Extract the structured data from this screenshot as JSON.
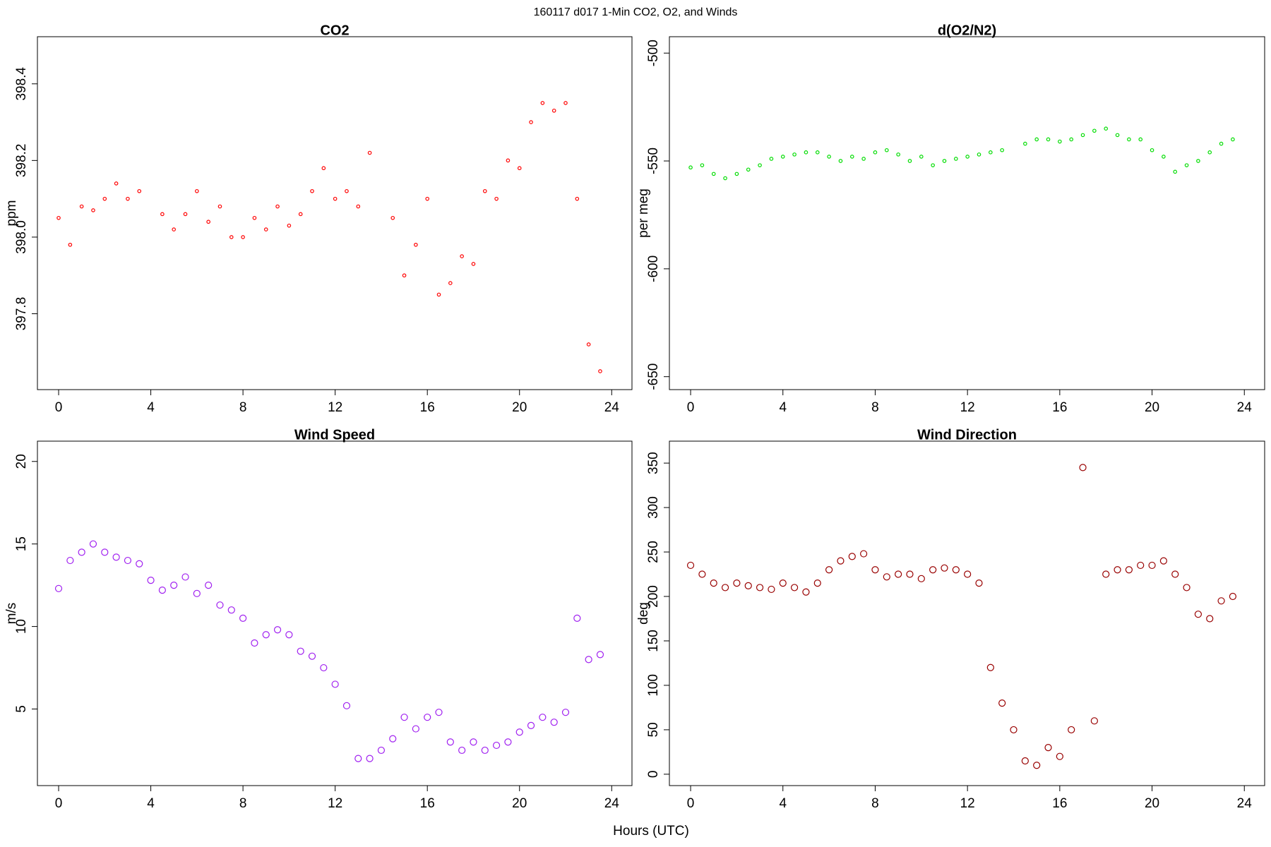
{
  "title": "160117   d017   1-Min CO2, O2, and Winds",
  "x_label": "Hours (UTC)",
  "chart_data": [
    {
      "type": "scatter",
      "title": "CO2",
      "y_label": "ppm",
      "color": "#ff0000",
      "x": [
        0,
        0.5,
        1,
        1.5,
        2,
        2.5,
        3,
        3.5,
        4,
        4.5,
        5,
        5.5,
        6,
        6.5,
        7,
        7.5,
        8,
        8.5,
        9,
        9.5,
        10,
        10.5,
        11,
        11.5,
        12,
        12.5,
        13,
        13.5,
        14,
        14.5,
        15,
        15.5,
        16,
        16.5,
        17,
        17.5,
        18,
        18.5,
        19,
        19.5,
        20,
        20.5,
        21,
        21.5,
        22,
        22.5,
        23,
        23.5
      ],
      "values": [
        398.05,
        397.98,
        398.08,
        398.07,
        398.1,
        398.14,
        398.1,
        398.12,
        null,
        398.06,
        398.02,
        398.06,
        398.12,
        398.04,
        398.08,
        398.0,
        398.0,
        398.05,
        398.02,
        398.08,
        398.03,
        398.06,
        398.12,
        398.18,
        398.1,
        398.12,
        398.08,
        398.22,
        null,
        398.05,
        397.9,
        397.98,
        398.1,
        397.85,
        397.88,
        397.95,
        397.93,
        398.12,
        398.1,
        398.2,
        398.18,
        398.3,
        398.35,
        398.33,
        398.35,
        398.1,
        397.72,
        397.65
      ],
      "xlim": [
        -0.92,
        24.88
      ],
      "ylim": [
        397.602,
        398.523
      ],
      "xticks": [
        0,
        4,
        8,
        12,
        16,
        20,
        24
      ],
      "yticks": [
        397.8,
        {
          "value": 398,
          "label": "398.0"
        },
        398.2,
        398.4
      ]
    },
    {
      "type": "scatter",
      "title": "d(O2/N2)",
      "y_label": "per meg",
      "color": "#00dd00",
      "x": [
        0,
        0.5,
        1,
        1.5,
        2,
        2.5,
        3,
        3.5,
        4,
        4.5,
        5,
        5.5,
        6,
        6.5,
        7,
        7.5,
        8,
        8.5,
        9,
        9.5,
        10,
        10.5,
        11,
        11.5,
        12,
        12.5,
        13,
        13.5,
        14,
        14.5,
        15,
        15.5,
        16,
        16.5,
        17,
        17.5,
        18,
        18.5,
        19,
        19.5,
        20,
        20.5,
        21,
        21.5,
        22,
        22.5,
        23,
        23.5
      ],
      "values": [
        -553,
        -552,
        -556,
        -558,
        -556,
        -554,
        -552,
        -549,
        -548,
        -547,
        -546,
        -546,
        -548,
        -550,
        -548,
        -549,
        -546,
        -545,
        -547,
        -550,
        -548,
        -552,
        -550,
        -549,
        -548,
        -547,
        -546,
        -545,
        null,
        -542,
        -540,
        -540,
        -541,
        -540,
        -538,
        -536,
        -535,
        -538,
        -540,
        -540,
        -545,
        -548,
        -555,
        -552,
        -550,
        -546,
        -542,
        -540
      ],
      "xlim": [
        -0.92,
        24.88
      ],
      "ylim": [
        -656.0,
        -492.4
      ],
      "xticks": [
        0,
        4,
        8,
        12,
        16,
        20,
        24
      ],
      "yticks": [
        -650,
        -600,
        -550,
        -500
      ]
    },
    {
      "type": "scatter",
      "title": "Wind Speed",
      "y_label": "m/s",
      "color": "#a020f0",
      "x": [
        0,
        0.5,
        1,
        1.5,
        2,
        2.5,
        3,
        3.5,
        4,
        4.5,
        5,
        5.5,
        6,
        6.5,
        7,
        7.5,
        8,
        8.5,
        9,
        9.5,
        10,
        10.5,
        11,
        11.5,
        12,
        12.5,
        13,
        13.5,
        14,
        14.5,
        15,
        15.5,
        16,
        16.5,
        17,
        17.5,
        18,
        18.5,
        19,
        19.5,
        20,
        20.5,
        21,
        21.5,
        22,
        22.5,
        23,
        23.5
      ],
      "values": [
        12.3,
        14,
        14.5,
        15,
        14.5,
        14.2,
        14,
        13.8,
        12.8,
        12.2,
        12.5,
        13,
        12,
        12.5,
        11.3,
        11,
        10.5,
        9,
        9.5,
        9.8,
        9.5,
        8.5,
        8.2,
        7.5,
        6.5,
        5.2,
        2,
        2,
        2.5,
        3.2,
        4.5,
        3.8,
        4.5,
        4.8,
        3,
        2.5,
        3,
        2.5,
        2.8,
        3,
        3.6,
        4,
        4.5,
        4.2,
        4.8,
        10.5,
        8,
        8.3
      ],
      "xlim": [
        -0.92,
        24.88
      ],
      "ylim": [
        0.36,
        21.23
      ],
      "xticks": [
        0,
        4,
        8,
        12,
        16,
        20,
        24
      ],
      "yticks": [
        5,
        10,
        15,
        20
      ]
    },
    {
      "type": "scatter",
      "title": "Wind Direction",
      "y_label": "deg",
      "color": "#990000",
      "x": [
        0,
        0.5,
        1,
        1.5,
        2,
        2.5,
        3,
        3.5,
        4,
        4.5,
        5,
        5.5,
        6,
        6.5,
        7,
        7.5,
        8,
        8.5,
        9,
        9.5,
        10,
        10.5,
        11,
        11.5,
        12,
        12.5,
        13,
        13.5,
        14,
        14.5,
        15,
        15.5,
        16,
        16.5,
        17,
        17.5,
        18,
        18.5,
        19,
        19.5,
        20,
        20.5,
        21,
        21.5,
        22,
        22.5,
        23,
        23.5
      ],
      "values": [
        235,
        225,
        215,
        210,
        215,
        212,
        210,
        208,
        215,
        210,
        205,
        215,
        230,
        240,
        245,
        248,
        230,
        222,
        225,
        225,
        220,
        230,
        232,
        230,
        225,
        215,
        120,
        80,
        50,
        15,
        10,
        30,
        20,
        50,
        345,
        60,
        225,
        230,
        230,
        235,
        235,
        240,
        225,
        210,
        180,
        175,
        195,
        200
      ],
      "xlim": [
        -0.92,
        24.88
      ],
      "ylim": [
        -12.8,
        374.7
      ],
      "xticks": [
        0,
        4,
        8,
        12,
        16,
        20,
        24
      ],
      "yticks": [
        0,
        50,
        100,
        150,
        200,
        250,
        300,
        350
      ]
    }
  ]
}
